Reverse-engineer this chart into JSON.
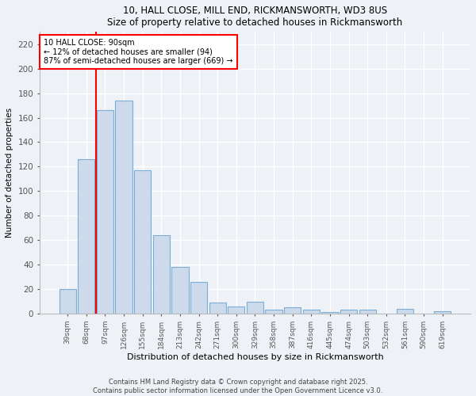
{
  "title1": "10, HALL CLOSE, MILL END, RICKMANSWORTH, WD3 8US",
  "title2": "Size of property relative to detached houses in Rickmansworth",
  "xlabel": "Distribution of detached houses by size in Rickmansworth",
  "ylabel": "Number of detached properties",
  "bar_labels": [
    "39sqm",
    "68sqm",
    "97sqm",
    "126sqm",
    "155sqm",
    "184sqm",
    "213sqm",
    "242sqm",
    "271sqm",
    "300sqm",
    "329sqm",
    "358sqm",
    "387sqm",
    "416sqm",
    "445sqm",
    "474sqm",
    "503sqm",
    "532sqm",
    "561sqm",
    "590sqm",
    "619sqm"
  ],
  "bar_values": [
    20,
    126,
    166,
    174,
    117,
    64,
    38,
    26,
    9,
    6,
    10,
    3,
    5,
    3,
    1,
    3,
    3,
    0,
    4,
    0,
    2
  ],
  "bar_color": "#ccdaeb",
  "bar_edge_color": "#7aaed6",
  "vline_x": 1.5,
  "vline_color": "red",
  "annotation_title": "10 HALL CLOSE: 90sqm",
  "annotation_line1": "← 12% of detached houses are smaller (94)",
  "annotation_line2": "87% of semi-detached houses are larger (669) →",
  "annotation_box_color": "white",
  "annotation_box_edge": "red",
  "ylim": [
    0,
    230
  ],
  "yticks": [
    0,
    20,
    40,
    60,
    80,
    100,
    120,
    140,
    160,
    180,
    200,
    220
  ],
  "footer1": "Contains HM Land Registry data © Crown copyright and database right 2025.",
  "footer2": "Contains public sector information licensed under the Open Government Licence v3.0.",
  "bg_color": "#eef2f7"
}
